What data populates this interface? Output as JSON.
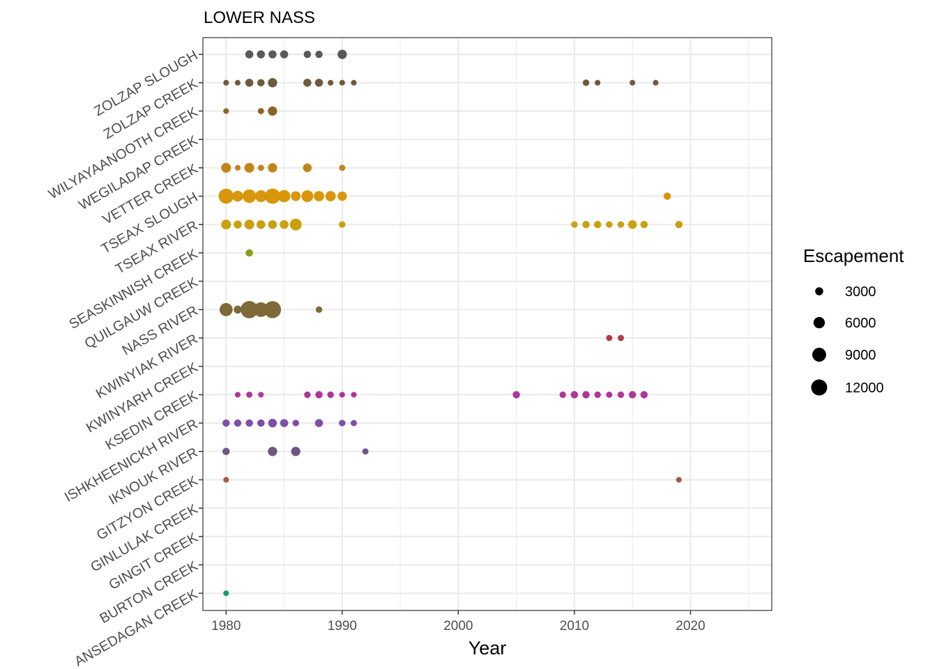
{
  "chart_data": {
    "type": "scatter",
    "title": "LOWER NASS",
    "xlabel": "Year",
    "ylabel": "",
    "xlim": [
      1978,
      2027
    ],
    "x_ticks": [
      "1980",
      "1990",
      "2000",
      "2010",
      "2020"
    ],
    "grid": true,
    "legend": {
      "title": "Escapement",
      "placement": "right",
      "values": [
        3000,
        6000,
        9000,
        12000
      ],
      "labels": [
        "3000",
        "6000",
        "9000",
        "12000"
      ]
    },
    "categories": [
      "ZOLZAP SLOUGH",
      "ZOLZAP CREEK",
      "WILYAYAANOOTH CREEK",
      "WEGILADAP CREEK",
      "VETTER CREEK",
      "TSEAX SLOUGH",
      "TSEAX RIVER",
      "SEASKINNISH CREEK",
      "QUILGAUW CREEK",
      "NASS RIVER",
      "KWINYIAK RIVER",
      "KWINYARH CREEK",
      "KSEDIN CREEK",
      "ISHKHEENICKH RIVER",
      "IKNOUK RIVER",
      "GITZYON CREEK",
      "GINLULAK CREEK",
      "GINGIT CREEK",
      "BURTON CREEK",
      "ANSEDAGAN CREEK"
    ],
    "series": [
      {
        "name": "ZOLZAP SLOUGH",
        "color": "#595959",
        "points": [
          [
            1982,
            3000
          ],
          [
            1983,
            3000
          ],
          [
            1984,
            3000
          ],
          [
            1985,
            3000
          ],
          [
            1987,
            2500
          ],
          [
            1988,
            2500
          ],
          [
            1990,
            4000
          ]
        ]
      },
      {
        "name": "ZOLZAP CREEK",
        "color": "#6e5a3e",
        "points": [
          [
            1980,
            1500
          ],
          [
            1981,
            1500
          ],
          [
            1982,
            3000
          ],
          [
            1983,
            2500
          ],
          [
            1984,
            4000
          ],
          [
            1987,
            3000
          ],
          [
            1988,
            3000
          ],
          [
            1989,
            1500
          ],
          [
            1990,
            1500
          ],
          [
            1991,
            1500
          ],
          [
            2011,
            2000
          ],
          [
            2012,
            1500
          ],
          [
            2015,
            1500
          ],
          [
            2017,
            1500
          ]
        ]
      },
      {
        "name": "WILYAYAANOOTH CREEK",
        "color": "#8a6526",
        "points": [
          [
            1980,
            1500
          ],
          [
            1983,
            1800
          ],
          [
            1984,
            4000
          ]
        ]
      },
      {
        "name": "WEGILADAP CREEK",
        "color": "#a77a1a",
        "points": []
      },
      {
        "name": "VETTER CREEK",
        "color": "#c3841c",
        "points": [
          [
            1980,
            4500
          ],
          [
            1981,
            1500
          ],
          [
            1982,
            4500
          ],
          [
            1983,
            1800
          ],
          [
            1984,
            4000
          ],
          [
            1987,
            3500
          ],
          [
            1990,
            1800
          ]
        ]
      },
      {
        "name": "TSEAX SLOUGH",
        "color": "#d8960a",
        "points": [
          [
            1980,
            10500
          ],
          [
            1981,
            5500
          ],
          [
            1982,
            8500
          ],
          [
            1983,
            6500
          ],
          [
            1984,
            11000
          ],
          [
            1985,
            7000
          ],
          [
            1986,
            4500
          ],
          [
            1987,
            6500
          ],
          [
            1988,
            5000
          ],
          [
            1989,
            5000
          ],
          [
            1990,
            4000
          ],
          [
            2018,
            2500
          ]
        ]
      },
      {
        "name": "TSEAX RIVER",
        "color": "#c9a00e",
        "points": [
          [
            1980,
            4500
          ],
          [
            1981,
            3000
          ],
          [
            1982,
            4500
          ],
          [
            1983,
            3500
          ],
          [
            1984,
            3500
          ],
          [
            1985,
            3500
          ],
          [
            1986,
            6500
          ],
          [
            1990,
            2000
          ],
          [
            2010,
            2000
          ],
          [
            2011,
            2500
          ],
          [
            2012,
            2500
          ],
          [
            2013,
            2000
          ],
          [
            2014,
            2000
          ],
          [
            2015,
            3500
          ],
          [
            2016,
            2500
          ],
          [
            2019,
            2500
          ]
        ]
      },
      {
        "name": "SEASKINNISH CREEK",
        "color": "#8a9d14",
        "points": [
          [
            1982,
            2500
          ]
        ]
      },
      {
        "name": "QUILGAUW CREEK",
        "color": "#8a8a30",
        "points": []
      },
      {
        "name": "NASS RIVER",
        "color": "#7d6a38",
        "points": [
          [
            1980,
            8000
          ],
          [
            1981,
            3000
          ],
          [
            1982,
            14000
          ],
          [
            1983,
            10000
          ],
          [
            1984,
            13500
          ],
          [
            1988,
            2000
          ]
        ]
      },
      {
        "name": "KWINYIAK RIVER",
        "color": "#b03a48",
        "points": [
          [
            2013,
            1800
          ],
          [
            2014,
            1800
          ]
        ]
      },
      {
        "name": "KWINYARH CREEK",
        "color": "#b83c70",
        "points": []
      },
      {
        "name": "KSEDIN CREEK",
        "color": "#b0359a",
        "points": [
          [
            1981,
            1500
          ],
          [
            1982,
            1800
          ],
          [
            1983,
            1500
          ],
          [
            1987,
            2000
          ],
          [
            1988,
            2500
          ],
          [
            1989,
            2000
          ],
          [
            1990,
            1500
          ],
          [
            1991,
            1500
          ],
          [
            2005,
            2500
          ],
          [
            2009,
            2000
          ],
          [
            2010,
            2500
          ],
          [
            2011,
            2500
          ],
          [
            2012,
            2000
          ],
          [
            2013,
            1800
          ],
          [
            2014,
            2000
          ],
          [
            2015,
            2500
          ],
          [
            2016,
            2500
          ]
        ]
      },
      {
        "name": "ISHKHEENICKH RIVER",
        "color": "#7d4fa8",
        "points": [
          [
            1980,
            2500
          ],
          [
            1981,
            2500
          ],
          [
            1982,
            2500
          ],
          [
            1983,
            2500
          ],
          [
            1984,
            3500
          ],
          [
            1985,
            3000
          ],
          [
            1986,
            2000
          ],
          [
            1988,
            3000
          ],
          [
            1990,
            2000
          ],
          [
            1991,
            1800
          ]
        ]
      },
      {
        "name": "IKNOUK RIVER",
        "color": "#6e5584",
        "points": [
          [
            1980,
            2500
          ],
          [
            1984,
            4000
          ],
          [
            1986,
            4000
          ],
          [
            1992,
            1800
          ]
        ]
      },
      {
        "name": "GITZYON CREEK",
        "color": "#a05a48",
        "points": [
          [
            1980,
            1500
          ],
          [
            2019,
            1500
          ]
        ]
      },
      {
        "name": "GINLULAK CREEK",
        "color": "#5b7a55",
        "points": []
      },
      {
        "name": "GINGIT CREEK",
        "color": "#3b8a65",
        "points": []
      },
      {
        "name": "BURTON CREEK",
        "color": "#2a9070",
        "points": []
      },
      {
        "name": "ANSEDAGAN CREEK",
        "color": "#1a9a72",
        "points": [
          [
            1980,
            1500
          ]
        ]
      }
    ]
  }
}
